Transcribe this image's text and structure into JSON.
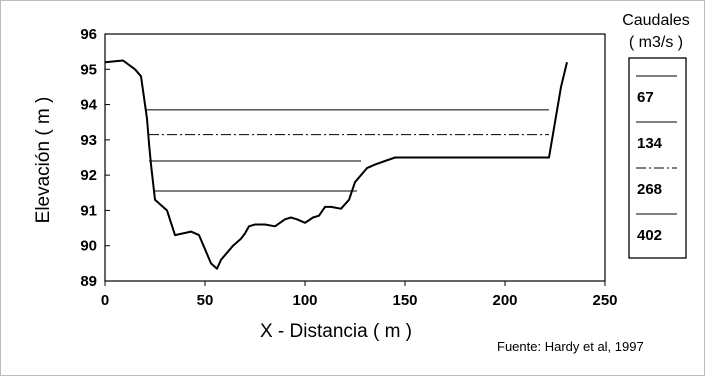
{
  "chart_data": {
    "type": "line",
    "title": "",
    "xlabel": "X - Distancia  ( m )",
    "ylabel": "Elevación  ( m )",
    "xlim": [
      0,
      250
    ],
    "ylim": [
      89,
      96
    ],
    "xticks": [
      "0",
      "50",
      "100",
      "150",
      "200",
      "250"
    ],
    "yticks": [
      "89",
      "90",
      "91",
      "92",
      "93",
      "94",
      "95",
      "96"
    ],
    "grid": false,
    "legend": {
      "title_line1": "Caudales",
      "title_line2": "( m3/s )",
      "placement": "right",
      "entries": [
        "67",
        "134",
        "268",
        "402"
      ]
    },
    "profile": {
      "x": [
        0,
        9,
        15,
        18,
        21,
        22,
        23,
        25,
        28,
        31,
        35,
        43,
        47,
        50,
        53,
        56,
        58,
        61,
        64,
        68,
        70,
        72,
        75,
        80,
        85,
        90,
        93,
        96,
        100,
        104,
        107,
        110,
        113,
        118,
        122,
        125,
        128,
        131,
        135,
        140,
        145,
        150,
        160,
        170,
        180,
        190,
        200,
        210,
        218,
        222,
        225,
        228,
        231
      ],
      "y": [
        95.2,
        95.25,
        95.0,
        94.8,
        93.6,
        92.9,
        92.3,
        91.3,
        91.15,
        91.0,
        90.3,
        90.4,
        90.3,
        89.9,
        89.5,
        89.35,
        89.6,
        89.8,
        90.0,
        90.2,
        90.35,
        90.55,
        90.6,
        90.6,
        90.55,
        90.75,
        90.8,
        90.75,
        90.65,
        90.8,
        90.85,
        91.1,
        91.1,
        91.05,
        91.3,
        91.8,
        92.0,
        92.2,
        92.3,
        92.4,
        92.5,
        92.5,
        92.5,
        92.5,
        92.5,
        92.5,
        92.5,
        92.5,
        92.5,
        92.5,
        93.5,
        94.5,
        95.2
      ]
    },
    "series": [
      {
        "name": "67",
        "y": 91.55,
        "x_start": 24,
        "x_end": 126,
        "style": "solid"
      },
      {
        "name": "134",
        "y": 92.4,
        "x_start": 22,
        "x_end": 128,
        "style": "solid"
      },
      {
        "name": "268",
        "y": 93.15,
        "x_start": 22,
        "x_end": 222,
        "style": "dash-dot"
      },
      {
        "name": "402",
        "y": 93.85,
        "x_start": 20,
        "x_end": 222,
        "style": "solid"
      }
    ]
  },
  "source": "Fuente: Hardy et al, 1997",
  "colors": {
    "line": "#000000",
    "frame": "#bdbdbd"
  }
}
